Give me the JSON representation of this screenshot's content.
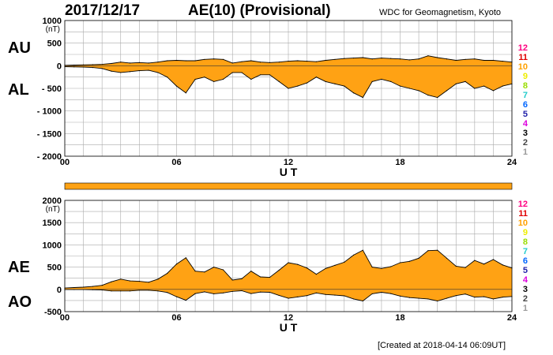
{
  "header": {
    "date": "2017/12/17",
    "title": "AE(10) (Provisional)",
    "organization": "WDC for Geomagnetism, Kyoto"
  },
  "footer": {
    "created": "[Created at 2018-04-14 06:09UT]"
  },
  "colors": {
    "fill": "#FFA214",
    "line": "#000000",
    "grid": "#aaaaaa"
  },
  "station_count_colors": [
    "#FF0080",
    "#E00000",
    "#FFA000",
    "#EEEE00",
    "#99DD00",
    "#22CCCC",
    "#0066FF",
    "#2222AA",
    "#DD00DD",
    "#000000",
    "#444444",
    "#999999"
  ],
  "chart_data": [
    {
      "type": "area",
      "panel": "top",
      "x_unit": "UT hours",
      "xlabel": "U T",
      "ylabel": "(nT)",
      "xlim": [
        0,
        24
      ],
      "ylim": [
        -2000,
        1000
      ],
      "xticks": [
        0,
        6,
        12,
        18,
        24
      ],
      "xtick_labels": [
        "00",
        "06",
        "12",
        "18",
        "24"
      ],
      "yticks": [
        1000,
        500,
        0,
        -500,
        -1000,
        -1500,
        -2000
      ],
      "ytick_labels": [
        "1000",
        "500",
        "0",
        "- 500",
        "- 1000",
        "- 1500",
        "- 2000"
      ],
      "grid": true,
      "side_labels": [
        "AU",
        "AL"
      ],
      "legend_numbers": [
        "12",
        "11",
        "10",
        "9",
        "8",
        "7",
        "6",
        "5",
        "4",
        "3",
        "2",
        "1"
      ],
      "series": [
        {
          "name": "AU",
          "x": [
            0,
            0.5,
            1,
            1.5,
            2,
            2.5,
            3,
            3.5,
            4,
            4.5,
            5,
            5.5,
            6,
            6.5,
            7,
            7.5,
            8,
            8.5,
            9,
            9.5,
            10,
            10.5,
            11,
            11.5,
            12,
            12.5,
            13,
            13.5,
            14,
            14.5,
            15,
            15.5,
            16,
            16.5,
            17,
            17.5,
            18,
            18.5,
            19,
            19.5,
            20,
            20.5,
            21,
            21.5,
            22,
            22.5,
            23,
            23.5,
            24
          ],
          "values": [
            10,
            15,
            20,
            25,
            30,
            50,
            80,
            60,
            70,
            60,
            80,
            110,
            120,
            110,
            110,
            140,
            150,
            140,
            60,
            90,
            110,
            80,
            70,
            80,
            100,
            110,
            100,
            90,
            120,
            140,
            160,
            170,
            180,
            150,
            170,
            160,
            150,
            130,
            150,
            220,
            180,
            150,
            120,
            140,
            150,
            120,
            120,
            100,
            80
          ]
        },
        {
          "name": "AL",
          "x": [
            0,
            0.5,
            1,
            1.5,
            2,
            2.5,
            3,
            3.5,
            4,
            4.5,
            5,
            5.5,
            6,
            6.5,
            7,
            7.5,
            8,
            8.5,
            9,
            9.5,
            10,
            10.5,
            11,
            11.5,
            12,
            12.5,
            13,
            13.5,
            14,
            14.5,
            15,
            15.5,
            16,
            16.5,
            17,
            17.5,
            18,
            18.5,
            19,
            19.5,
            20,
            20.5,
            21,
            21.5,
            22,
            22.5,
            23,
            23.5,
            24
          ],
          "values": [
            -20,
            -25,
            -30,
            -40,
            -60,
            -120,
            -150,
            -130,
            -110,
            -100,
            -150,
            -250,
            -450,
            -600,
            -300,
            -250,
            -350,
            -300,
            -150,
            -150,
            -300,
            -200,
            -200,
            -350,
            -500,
            -450,
            -380,
            -250,
            -350,
            -400,
            -450,
            -600,
            -700,
            -350,
            -300,
            -350,
            -450,
            -500,
            -550,
            -650,
            -700,
            -550,
            -400,
            -350,
            -500,
            -450,
            -550,
            -450,
            -400
          ]
        }
      ]
    },
    {
      "type": "area",
      "panel": "bottom",
      "x_unit": "UT hours",
      "xlabel": "U T",
      "ylabel": "(nT)",
      "xlim": [
        0,
        24
      ],
      "ylim": [
        -500,
        2000
      ],
      "xticks": [
        0,
        6,
        12,
        18,
        24
      ],
      "xtick_labels": [
        "00",
        "06",
        "12",
        "18",
        "24"
      ],
      "yticks": [
        2000,
        1500,
        1000,
        500,
        0,
        -500
      ],
      "ytick_labels": [
        "2000",
        "1500",
        "1000",
        "500",
        "0",
        "-500"
      ],
      "grid": true,
      "side_labels": [
        "AE",
        "AO"
      ],
      "legend_numbers": [
        "12",
        "11",
        "10",
        "9",
        "8",
        "7",
        "6",
        "5",
        "4",
        "3",
        "2",
        "1"
      ],
      "series": [
        {
          "name": "AE",
          "x": [
            0,
            0.5,
            1,
            1.5,
            2,
            2.5,
            3,
            3.5,
            4,
            4.5,
            5,
            5.5,
            6,
            6.5,
            7,
            7.5,
            8,
            8.5,
            9,
            9.5,
            10,
            10.5,
            11,
            11.5,
            12,
            12.5,
            13,
            13.5,
            14,
            14.5,
            15,
            15.5,
            16,
            16.5,
            17,
            17.5,
            18,
            18.5,
            19,
            19.5,
            20,
            20.5,
            21,
            21.5,
            22,
            22.5,
            23,
            23.5,
            24
          ],
          "values": [
            30,
            40,
            50,
            65,
            90,
            170,
            230,
            190,
            180,
            160,
            230,
            360,
            570,
            710,
            410,
            390,
            500,
            440,
            210,
            240,
            410,
            280,
            270,
            430,
            600,
            560,
            480,
            340,
            470,
            540,
            610,
            770,
            880,
            500,
            470,
            510,
            600,
            630,
            700,
            870,
            880,
            700,
            520,
            490,
            650,
            570,
            670,
            550,
            480
          ]
        },
        {
          "name": "AO",
          "x": [
            0,
            0.5,
            1,
            1.5,
            2,
            2.5,
            3,
            3.5,
            4,
            4.5,
            5,
            5.5,
            6,
            6.5,
            7,
            7.5,
            8,
            8.5,
            9,
            9.5,
            10,
            10.5,
            11,
            11.5,
            12,
            12.5,
            13,
            13.5,
            14,
            14.5,
            15,
            15.5,
            16,
            16.5,
            17,
            17.5,
            18,
            18.5,
            19,
            19.5,
            20,
            20.5,
            21,
            21.5,
            22,
            22.5,
            23,
            23.5,
            24
          ],
          "values": [
            -5,
            -5,
            -5,
            -8,
            -15,
            -35,
            -35,
            -35,
            -20,
            -20,
            -35,
            -70,
            -165,
            -245,
            -95,
            -55,
            -100,
            -80,
            -45,
            -30,
            -95,
            -60,
            -65,
            -135,
            -200,
            -170,
            -140,
            -80,
            -115,
            -130,
            -145,
            -215,
            -260,
            -100,
            -65,
            -95,
            -150,
            -185,
            -200,
            -215,
            -260,
            -200,
            -140,
            -105,
            -175,
            -165,
            -215,
            -175,
            -160
          ]
        }
      ]
    }
  ]
}
